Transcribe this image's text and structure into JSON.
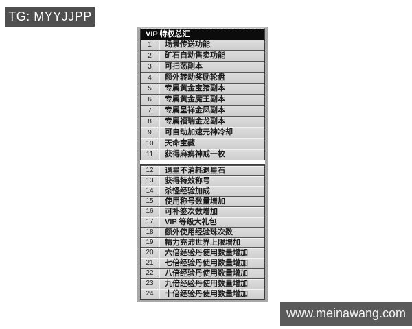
{
  "watermarks": {
    "tg_label": "TG: MYYJJPP",
    "site_label": "www.meinawang.com"
  },
  "colors": {
    "page_bg": "#ffffff",
    "watermark_bg": "#4f4f4f",
    "header_bg": "#0c0c0c",
    "row_bg": "#d6d6d6",
    "frame": "#a8a8a8",
    "text": "#1c1c1c"
  },
  "table": {
    "title": "VIP 特权总汇",
    "sections": [
      {
        "rows": [
          {
            "num": "1",
            "text": "场景传送功能"
          },
          {
            "num": "2",
            "text": "矿石自动售卖功能"
          },
          {
            "num": "3",
            "text": "可扫荡副本"
          },
          {
            "num": "4",
            "text": "额外转动奖励轮盘"
          },
          {
            "num": "5",
            "text": "专属黄金宝猪副本"
          },
          {
            "num": "6",
            "text": "专属黄金魔王副本"
          },
          {
            "num": "7",
            "text": "专属呈祥金凤副本"
          },
          {
            "num": "8",
            "text": "专属福瑞金龙副本"
          },
          {
            "num": "9",
            "text": "可自动加速元神冷却"
          },
          {
            "num": "10",
            "text": "天命宝藏"
          },
          {
            "num": "11",
            "text": "获得麻痹神戒一枚"
          }
        ]
      },
      {
        "rows": [
          {
            "num": "12",
            "text": "退星不消耗退星石"
          },
          {
            "num": "13",
            "text": "获得特效称号"
          },
          {
            "num": "14",
            "text": "杀怪经验加成"
          },
          {
            "num": "15",
            "text": "使用称号数量增加"
          },
          {
            "num": "16",
            "text": "可补签次数增加"
          },
          {
            "num": "17",
            "text": "VIP 等级大礼包"
          },
          {
            "num": "18",
            "text": "额外使用经验珠次数"
          },
          {
            "num": "19",
            "text": "精力充沛世界上限增加"
          },
          {
            "num": "20",
            "text": "六倍经验丹使用数量增加"
          },
          {
            "num": "21",
            "text": "七倍经验丹使用数量增加"
          },
          {
            "num": "22",
            "text": "八倍经验丹使用数量增加"
          },
          {
            "num": "23",
            "text": "九倍经验丹使用数量增加"
          },
          {
            "num": "24",
            "text": "十倍经验丹使用数量增加"
          }
        ]
      }
    ]
  }
}
